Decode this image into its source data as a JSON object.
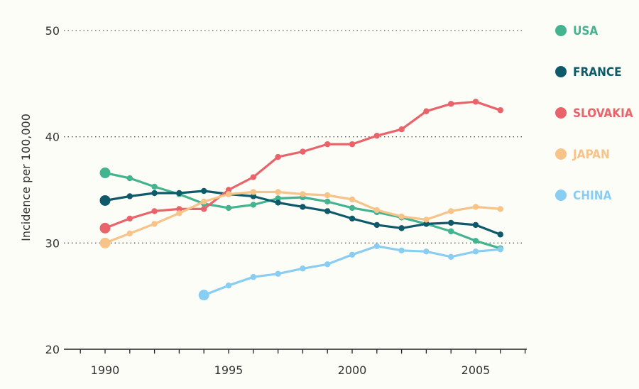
{
  "chart_data": {
    "type": "line",
    "title": "",
    "xlabel": "",
    "ylabel": "Incidence per 100,000",
    "xlim": [
      1988.3,
      2007.0
    ],
    "ylim": [
      20,
      50
    ],
    "y_ticks": [
      "20",
      "30",
      "40",
      "50"
    ],
    "x_ticks": [
      "1990",
      "1995",
      "2000",
      "2005"
    ],
    "grid": true,
    "legend_position": "right",
    "series": [
      {
        "name": "USA",
        "color": "#44b38f",
        "x": [
          1990,
          1991,
          1992,
          1993,
          1994,
          1995,
          1996,
          1997,
          1998,
          1999,
          2000,
          2001,
          2002,
          2003,
          2004,
          2005,
          2006
        ],
        "values": [
          36.6,
          36.1,
          35.3,
          34.6,
          33.7,
          33.3,
          33.6,
          34.2,
          34.3,
          33.9,
          33.3,
          32.9,
          32.4,
          31.8,
          31.1,
          30.2,
          29.5
        ]
      },
      {
        "name": "FRANCE",
        "color": "#0e5a6b",
        "x": [
          1990,
          1991,
          1992,
          1993,
          1994,
          1995,
          1996,
          1997,
          1998,
          1999,
          2000,
          2001,
          2002,
          2003,
          2004,
          2005,
          2006
        ],
        "values": [
          34.0,
          34.4,
          34.7,
          34.7,
          34.9,
          34.6,
          34.4,
          33.8,
          33.4,
          33.0,
          32.3,
          31.7,
          31.4,
          31.8,
          31.9,
          31.7,
          30.8
        ]
      },
      {
        "name": "SLOVAKIA",
        "color": "#e8646a",
        "x": [
          1990,
          1991,
          1992,
          1993,
          1994,
          1995,
          1996,
          1997,
          1998,
          1999,
          2000,
          2001,
          2002,
          2003,
          2004,
          2005,
          2006
        ],
        "values": [
          31.4,
          32.3,
          33.0,
          33.2,
          33.2,
          35.0,
          36.2,
          38.1,
          38.6,
          39.3,
          39.3,
          40.1,
          40.7,
          42.4,
          43.1,
          43.3,
          42.5
        ]
      },
      {
        "name": "JAPAN",
        "color": "#f7c389",
        "x": [
          1990,
          1991,
          1992,
          1993,
          1994,
          1995,
          1996,
          1997,
          1998,
          1999,
          2000,
          2001,
          2002,
          2003,
          2004,
          2005,
          2006
        ],
        "values": [
          30.0,
          30.9,
          31.8,
          32.8,
          33.9,
          34.6,
          34.8,
          34.8,
          34.6,
          34.5,
          34.1,
          33.1,
          32.5,
          32.2,
          33.0,
          33.4,
          33.2
        ]
      },
      {
        "name": "CHINA",
        "color": "#89cdf2",
        "x": [
          1994,
          1995,
          1996,
          1997,
          1998,
          1999,
          2000,
          2001,
          2002,
          2003,
          2004,
          2005,
          2006
        ],
        "values": [
          25.1,
          26.0,
          26.8,
          27.1,
          27.6,
          28.0,
          28.9,
          29.7,
          29.3,
          29.2,
          28.7,
          29.2,
          29.4
        ]
      }
    ]
  }
}
